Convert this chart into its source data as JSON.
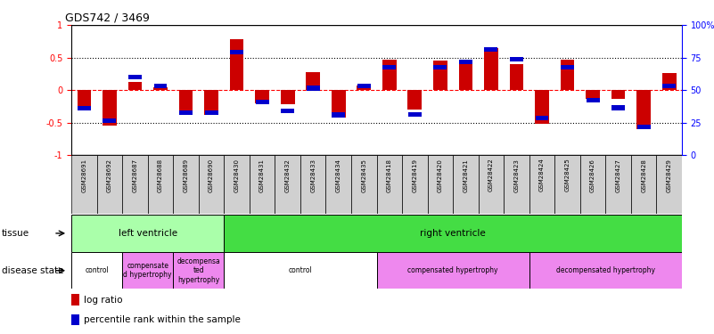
{
  "title": "GDS742 / 3469",
  "samples": [
    "GSM28691",
    "GSM28692",
    "GSM28687",
    "GSM28688",
    "GSM28689",
    "GSM28690",
    "GSM28430",
    "GSM28431",
    "GSM28432",
    "GSM28433",
    "GSM28434",
    "GSM28435",
    "GSM28418",
    "GSM28419",
    "GSM28420",
    "GSM28421",
    "GSM28422",
    "GSM28423",
    "GSM28424",
    "GSM28425",
    "GSM28426",
    "GSM28427",
    "GSM28428",
    "GSM28429"
  ],
  "log_ratio": [
    -0.3,
    -0.55,
    0.13,
    0.05,
    -0.37,
    -0.38,
    0.78,
    -0.2,
    -0.22,
    0.28,
    -0.42,
    0.07,
    0.47,
    -0.3,
    0.45,
    0.43,
    0.65,
    0.4,
    -0.52,
    0.47,
    -0.13,
    -0.13,
    -0.6,
    0.26
  ],
  "percentile_val": [
    -0.28,
    -0.47,
    0.2,
    0.07,
    -0.35,
    -0.35,
    0.58,
    -0.18,
    -0.32,
    0.03,
    -0.38,
    0.07,
    0.35,
    -0.37,
    0.35,
    0.43,
    0.63,
    0.47,
    -0.43,
    0.35,
    -0.15,
    -0.27,
    -0.57,
    0.07
  ],
  "bar_color": "#cc0000",
  "dot_color": "#0000cc",
  "tissue_data": [
    {
      "text": "left ventricle",
      "start": 0,
      "end": 6,
      "color": "#aaffaa"
    },
    {
      "text": "right ventricle",
      "start": 6,
      "end": 24,
      "color": "#44dd44"
    }
  ],
  "disease_data": [
    {
      "text": "control",
      "start": 0,
      "end": 2,
      "color": "#ffffff"
    },
    {
      "text": "compensate\nd hypertrophy",
      "start": 2,
      "end": 4,
      "color": "#ee88ee"
    },
    {
      "text": "decompensa\nted\nhypertrophy",
      "start": 4,
      "end": 6,
      "color": "#ee88ee"
    },
    {
      "text": "control",
      "start": 6,
      "end": 12,
      "color": "#ffffff"
    },
    {
      "text": "compensated hypertrophy",
      "start": 12,
      "end": 18,
      "color": "#ee88ee"
    },
    {
      "text": "decompensated hypertrophy",
      "start": 18,
      "end": 24,
      "color": "#ee88ee"
    }
  ],
  "legend": [
    {
      "label": "log ratio",
      "color": "#cc0000"
    },
    {
      "label": "percentile rank within the sample",
      "color": "#0000cc"
    }
  ]
}
